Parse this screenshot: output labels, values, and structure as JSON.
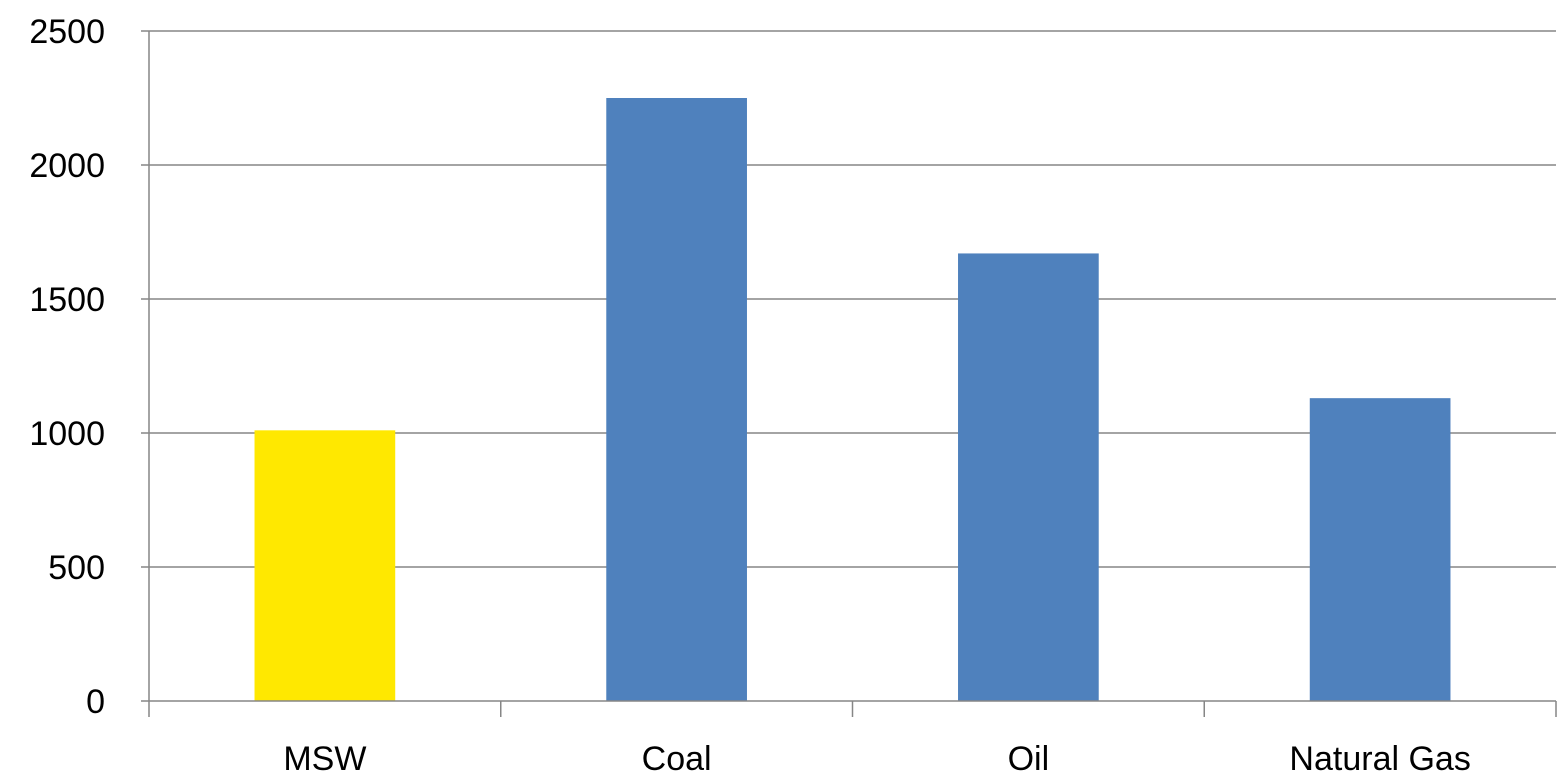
{
  "chart_data": {
    "type": "bar",
    "categories": [
      "MSW",
      "Coal",
      "Oil",
      "Natural Gas"
    ],
    "values": [
      1010,
      2250,
      1670,
      1130
    ],
    "bar_colors": [
      "#FFE800",
      "#4F81BD",
      "#4F81BD",
      "#4F81BD"
    ],
    "title": "",
    "xlabel": "",
    "ylabel": "",
    "ylim": [
      0,
      2500
    ],
    "yticks": [
      0,
      500,
      1000,
      1500,
      2000,
      2500
    ],
    "grid": true,
    "legend": "none"
  },
  "colors": {
    "axis": "#868686",
    "grid": "#868686"
  }
}
